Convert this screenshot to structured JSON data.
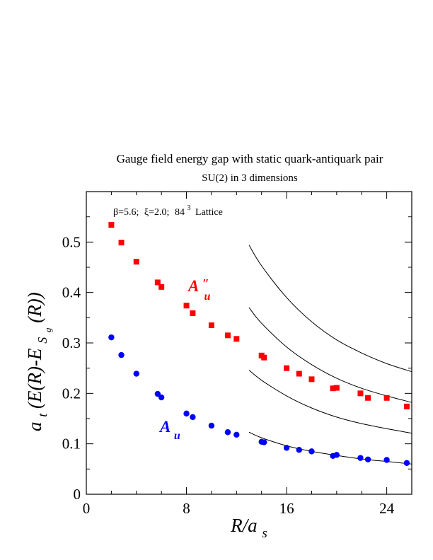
{
  "chart_data": {
    "type": "scatter",
    "title": "Gauge field energy gap with static quark-antiquark pair",
    "subtitle": "SU(2) in 3 dimensions",
    "annotation": {
      "beta": "β=5.6;",
      "xi": "ξ=2.0;",
      "lattice_size": "84",
      "lattice_exp": "3",
      "lattice_word": "Lattice"
    },
    "xlabel": {
      "main": "R/a",
      "sub": "s"
    },
    "ylabel": {
      "pre": "a",
      "sub1": "t",
      "mid": "(E(R)-E",
      "sub2": "S",
      "sub3": "g",
      "post": "(R))"
    },
    "xlim": [
      0,
      26
    ],
    "ylim": [
      0,
      0.6
    ],
    "x_ticks": [
      0,
      8,
      16,
      24
    ],
    "x_tick_labels": [
      "0",
      "8",
      "16",
      "24"
    ],
    "y_ticks": [
      0,
      0.1,
      0.2,
      0.3,
      0.4,
      0.5
    ],
    "y_tick_labels": [
      "0",
      "0.1",
      "0.2",
      "0.3",
      "0.4",
      "0.5"
    ],
    "grid": false,
    "series": [
      {
        "name": "A″u",
        "label_main": "A",
        "label_prime": "″",
        "label_sub": "u",
        "color": "#ff0000",
        "marker": "square",
        "points": [
          [
            2.0,
            0.534
          ],
          [
            2.8,
            0.499
          ],
          [
            4.0,
            0.461
          ],
          [
            5.7,
            0.42
          ],
          [
            6.0,
            0.411
          ],
          [
            8.0,
            0.374
          ],
          [
            8.5,
            0.359
          ],
          [
            10.0,
            0.335
          ],
          [
            11.3,
            0.315
          ],
          [
            12.0,
            0.308
          ],
          [
            14.0,
            0.275
          ],
          [
            14.2,
            0.271
          ],
          [
            16.0,
            0.25
          ],
          [
            17.0,
            0.239
          ],
          [
            18.0,
            0.228
          ],
          [
            19.7,
            0.21
          ],
          [
            20.0,
            0.211
          ],
          [
            21.9,
            0.2
          ],
          [
            22.5,
            0.191
          ],
          [
            24.0,
            0.191
          ],
          [
            25.6,
            0.174
          ]
        ]
      },
      {
        "name": "Au",
        "label_main": "A",
        "label_sub": "u",
        "color": "#0000ff",
        "marker": "circle",
        "points": [
          [
            2.0,
            0.311
          ],
          [
            2.8,
            0.276
          ],
          [
            4.0,
            0.239
          ],
          [
            5.7,
            0.199
          ],
          [
            6.0,
            0.192
          ],
          [
            8.0,
            0.16
          ],
          [
            8.5,
            0.153
          ],
          [
            10.0,
            0.136
          ],
          [
            11.3,
            0.123
          ],
          [
            12.0,
            0.118
          ],
          [
            14.0,
            0.104
          ],
          [
            14.2,
            0.103
          ],
          [
            16.0,
            0.092
          ],
          [
            17.0,
            0.088
          ],
          [
            18.0,
            0.085
          ],
          [
            19.7,
            0.076
          ],
          [
            20.0,
            0.078
          ],
          [
            21.9,
            0.072
          ],
          [
            22.5,
            0.069
          ],
          [
            24.0,
            0.068
          ],
          [
            25.6,
            0.062
          ]
        ]
      }
    ],
    "curves": [
      {
        "color": "#000000",
        "points": [
          [
            13,
            0.123
          ],
          [
            14,
            0.112
          ],
          [
            16,
            0.096
          ],
          [
            18,
            0.085
          ],
          [
            20,
            0.077
          ],
          [
            22,
            0.07
          ],
          [
            24,
            0.065
          ],
          [
            26,
            0.06
          ]
        ]
      },
      {
        "color": "#000000",
        "points": [
          [
            13,
            0.246
          ],
          [
            14,
            0.226
          ],
          [
            16,
            0.195
          ],
          [
            18,
            0.171
          ],
          [
            20,
            0.153
          ],
          [
            22,
            0.14
          ],
          [
            24,
            0.13
          ],
          [
            26,
            0.121
          ]
        ]
      },
      {
        "color": "#000000",
        "points": [
          [
            13,
            0.37
          ],
          [
            14,
            0.339
          ],
          [
            16,
            0.292
          ],
          [
            18,
            0.257
          ],
          [
            20,
            0.23
          ],
          [
            22,
            0.21
          ],
          [
            24,
            0.195
          ],
          [
            26,
            0.182
          ]
        ]
      },
      {
        "color": "#000000",
        "points": [
          [
            13,
            0.494
          ],
          [
            14,
            0.453
          ],
          [
            16,
            0.39
          ],
          [
            18,
            0.342
          ],
          [
            20,
            0.306
          ],
          [
            22,
            0.28
          ],
          [
            24,
            0.259
          ],
          [
            26,
            0.243
          ]
        ]
      }
    ]
  }
}
